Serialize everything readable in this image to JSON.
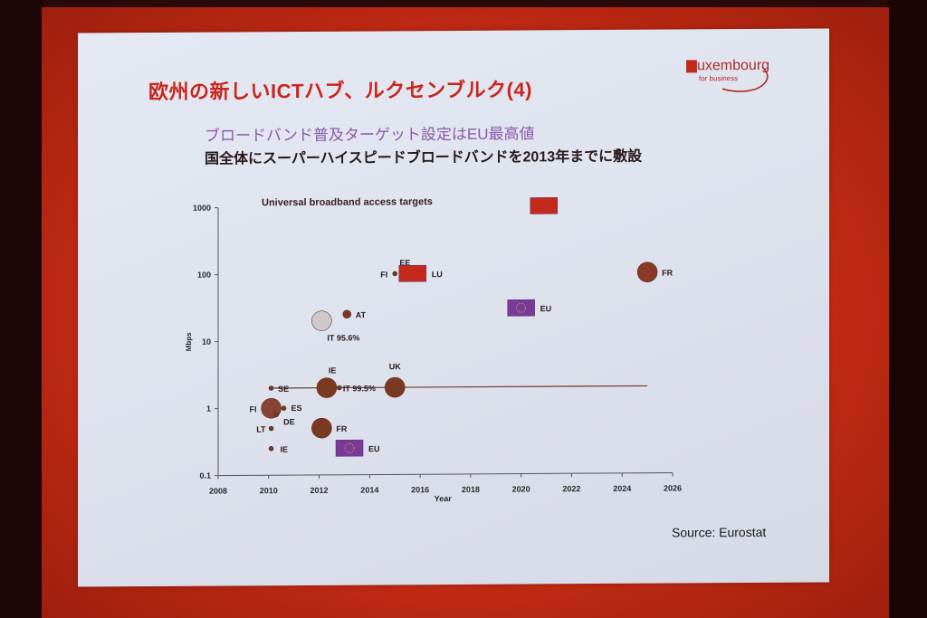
{
  "slide": {
    "title": "欧州の新しいICTハブ、ルクセンブルク(4)",
    "subtitle1": "ブロードバンド普及ターゲット設定はEU最高値",
    "subtitle2": "国全体にスーパーハイスピードブロードバンドを2013年までに敷設",
    "logo_main": "uxembourg",
    "logo_sub": "for business",
    "source": "Source: Eurostat"
  },
  "chart_data": {
    "type": "scatter",
    "title": "Universal broadband access targets",
    "xlabel": "Year",
    "ylabel": "Mbps",
    "xlim": [
      2008,
      2026
    ],
    "ylim": [
      0.1,
      1000
    ],
    "yscale": "log",
    "x_ticks": [
      "2008",
      "2010",
      "2012",
      "2014",
      "2016",
      "2018",
      "2020",
      "2022",
      "2024",
      "2026"
    ],
    "y_ticks": [
      "0.1",
      "1",
      "10",
      "100",
      "1000"
    ],
    "reference_line": {
      "y": 2,
      "x_from": 2010,
      "x_to": 2025
    },
    "points": [
      {
        "label": "FR",
        "x": 2025,
        "y": 100,
        "size": "large",
        "kind": "bubble",
        "color": "#8a3a26"
      },
      {
        "label": "FI",
        "x": 2015,
        "y": 100,
        "size": "tiny",
        "kind": "bubble",
        "color": "#6a3a2a"
      },
      {
        "label": "EE",
        "x": 2015.4,
        "y": 100,
        "size": "tiny",
        "kind": "bubble",
        "color": "#6a3a2a"
      },
      {
        "label": "LU",
        "x": 2015.7,
        "y": 100,
        "size": "flag",
        "kind": "flag",
        "color": "#c42a1c"
      },
      {
        "label": "",
        "x": 2020.9,
        "y": 1000,
        "size": "flag",
        "kind": "flag",
        "color": "#c42a1c"
      },
      {
        "label": "EU",
        "x": 2020,
        "y": 30,
        "size": "flag",
        "kind": "flag",
        "color": "#7a3a9a"
      },
      {
        "label": "AT",
        "x": 2013.1,
        "y": 25,
        "size": "small",
        "kind": "bubble",
        "color": "#7a3a22"
      },
      {
        "label": "IT 95.6%",
        "x": 2012.1,
        "y": 20,
        "size": "large",
        "kind": "bubble",
        "color": "#cfc8c8"
      },
      {
        "label": "SE",
        "x": 2010.1,
        "y": 2,
        "size": "tiny",
        "kind": "bubble",
        "color": "#6a3a2a"
      },
      {
        "label": "IE",
        "x": 2012.3,
        "y": 2,
        "size": "large",
        "kind": "bubble",
        "color": "#7a3a22"
      },
      {
        "label": "IT 99.5%",
        "x": 2012.8,
        "y": 2,
        "size": "tiny",
        "kind": "bubble",
        "color": "#6a3a2a"
      },
      {
        "label": "UK",
        "x": 2015,
        "y": 2,
        "size": "large",
        "kind": "bubble",
        "color": "#7a3a22"
      },
      {
        "label": "FI",
        "x": 2010.1,
        "y": 1,
        "size": "large",
        "kind": "bubble",
        "color": "#8a4232"
      },
      {
        "label": "ES",
        "x": 2010.6,
        "y": 1,
        "size": "tiny",
        "kind": "bubble",
        "color": "#6a3a2a"
      },
      {
        "label": "DE",
        "x": 2010.3,
        "y": 0.8,
        "size": "tiny",
        "kind": "bubble",
        "color": "#6a3a2a"
      },
      {
        "label": "LT",
        "x": 2010.1,
        "y": 0.5,
        "size": "tiny",
        "kind": "bubble",
        "color": "#6a3a2a"
      },
      {
        "label": "FR",
        "x": 2012.1,
        "y": 0.5,
        "size": "large",
        "kind": "bubble",
        "color": "#7a3a22"
      },
      {
        "label": "IE",
        "x": 2010.1,
        "y": 0.25,
        "size": "tiny",
        "kind": "bubble",
        "color": "#6a3a2a"
      },
      {
        "label": "EU",
        "x": 2013.2,
        "y": 0.25,
        "size": "flag",
        "kind": "flag",
        "color": "#7a3a9a"
      }
    ]
  }
}
